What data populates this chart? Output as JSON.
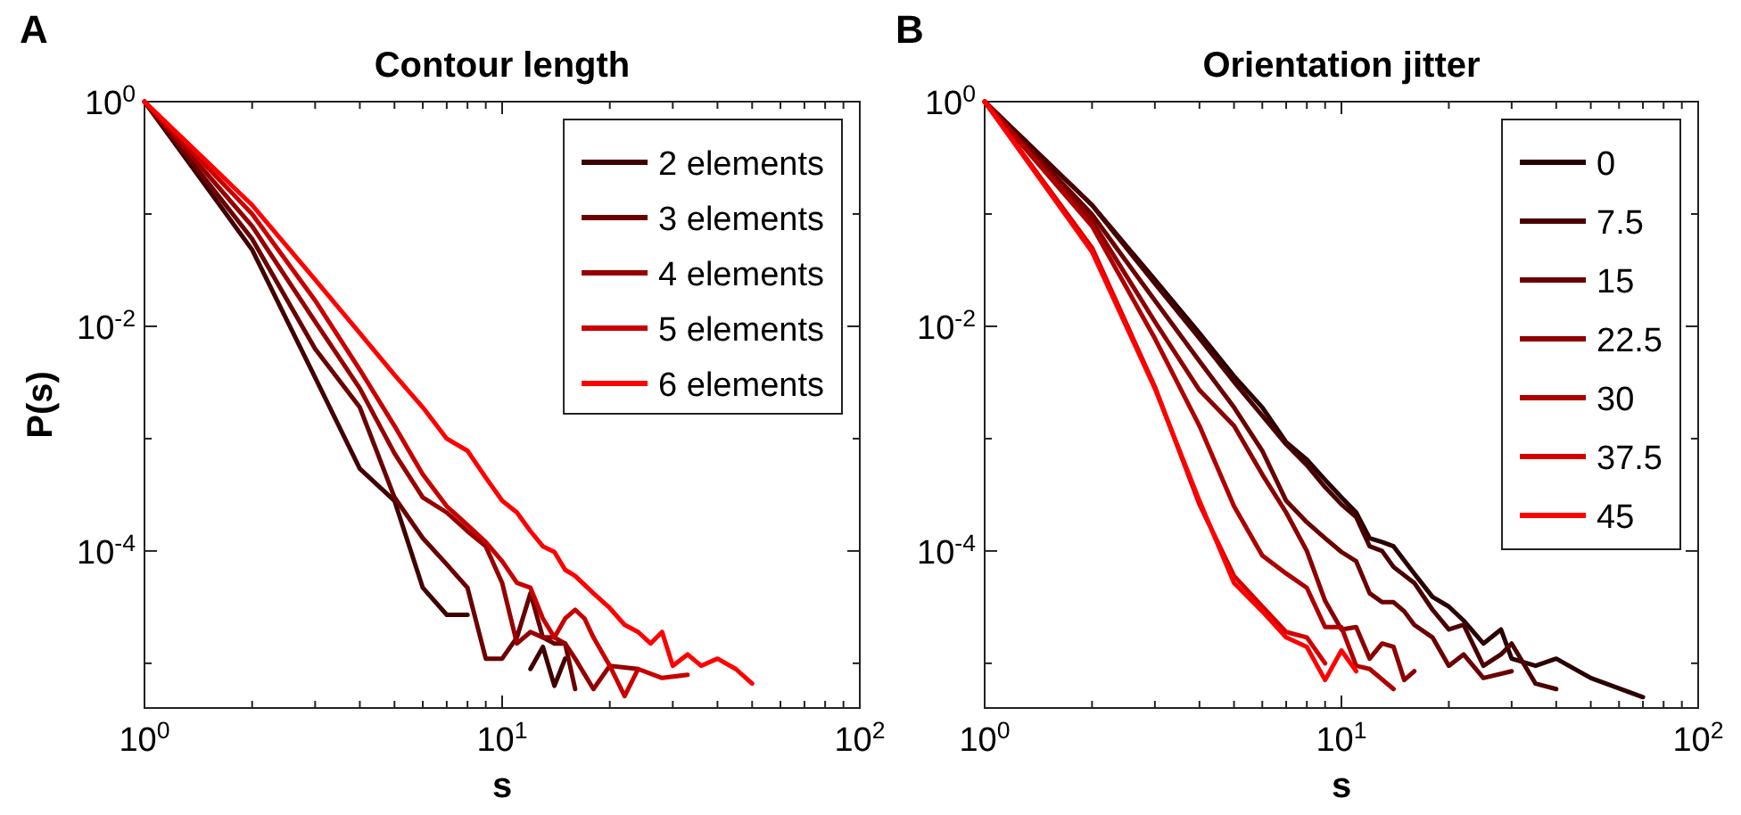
{
  "chart_data": [
    {
      "type": "line",
      "title": "Contour length",
      "xlabel": "s",
      "ylabel": "P(s)",
      "annotations": [
        "A"
      ],
      "log": "xy",
      "legend": "top right",
      "xlim": [
        1,
        100
      ],
      "ylim": [
        4e-06,
        1
      ],
      "xticks": [
        {
          "value": 1,
          "label": "10$^{0}$"
        },
        {
          "value": 2,
          "label": null
        },
        {
          "value": 3,
          "label": null
        },
        {
          "value": 4,
          "label": null
        },
        {
          "value": 5,
          "label": null
        },
        {
          "value": 6,
          "label": null
        },
        {
          "value": 7,
          "label": null
        },
        {
          "value": 8,
          "label": null
        },
        {
          "value": 9,
          "label": null
        },
        {
          "value": 10,
          "label": "10$^{1}$"
        },
        {
          "value": 20,
          "label": null
        },
        {
          "value": 30,
          "label": null
        },
        {
          "value": 40,
          "label": null
        },
        {
          "value": 50,
          "label": null
        },
        {
          "value": 60,
          "label": null
        },
        {
          "value": 70,
          "label": null
        },
        {
          "value": 80,
          "label": null
        },
        {
          "value": 90,
          "label": null
        },
        {
          "value": 100,
          "label": "10$^{2}$"
        }
      ],
      "yticks": [
        {
          "value": 1,
          "label": "10$^{0}$"
        },
        {
          "value": 0.1,
          "label": null
        },
        {
          "value": 0.01,
          "label": "10$^{-2}$"
        },
        {
          "value": 0.001,
          "label": null
        },
        {
          "value": 0.0001,
          "label": "10$^{-4}$"
        },
        {
          "value": 1e-05,
          "label": null
        }
      ],
      "series": [
        {
          "name": "2 elements",
          "color": "#400000",
          "x": [
            1,
            2,
            3,
            4,
            5,
            6,
            7,
            8,
            10,
            12,
            13,
            14,
            15
          ],
          "values": [
            1,
            0.048,
            0.0035,
            0.00054,
            0.00028,
            4.7e-05,
            2.7e-05,
            2.7e-05,
            null,
            8.9e-06,
            1.4e-05,
            6.3e-06,
            1.1e-05
          ]
        },
        {
          "name": "3 elements",
          "color": "#6a0000",
          "x": [
            1,
            2,
            3,
            4,
            5,
            6,
            7,
            8,
            9,
            10,
            11,
            12,
            13,
            14,
            15,
            16
          ],
          "values": [
            1,
            0.06,
            0.0063,
            0.0019,
            0.0003,
            0.00013,
            7.6e-05,
            4.7e-05,
            1.1e-05,
            1.1e-05,
            1.7e-05,
            4.2e-05,
            1.7e-05,
            1.5e-05,
            1.5e-05,
            5.9e-06
          ]
        },
        {
          "name": "4 elements",
          "color": "#960000",
          "x": [
            1,
            2,
            3,
            4,
            5,
            6,
            7,
            8,
            9,
            10,
            11,
            12,
            13,
            14,
            15,
            16,
            18,
            20,
            24
          ],
          "values": [
            1,
            0.078,
            0.011,
            0.0028,
            0.00074,
            0.0003,
            0.00022,
            0.00015,
            0.00011,
            5.2e-05,
            1.5e-05,
            1.9e-05,
            1.7e-05,
            1.7e-05,
            1.5e-05,
            1.1e-05,
            5.9e-06,
            9.5e-06,
            8.9e-06
          ]
        },
        {
          "name": "5 elements",
          "color": "#c80000",
          "x": [
            1,
            2,
            3,
            4,
            5,
            6,
            7,
            8,
            9,
            10,
            11,
            12,
            13,
            14,
            15,
            16,
            17,
            18,
            20,
            22,
            24,
            28,
            33
          ],
          "values": [
            1,
            0.1,
            0.017,
            0.0041,
            0.0013,
            0.00048,
            0.00025,
            0.00017,
            0.00012,
            8.1e-05,
            5.2e-05,
            4.7e-05,
            2.5e-05,
            1.7e-05,
            2.5e-05,
            3e-05,
            2.5e-05,
            1.7e-05,
            9.5e-06,
            5.1e-06,
            8.9e-06,
            7.4e-06,
            7.9e-06
          ]
        },
        {
          "name": "6 elements",
          "color": "#ff0000",
          "x": [
            1,
            2,
            3,
            4,
            5,
            6,
            7,
            8,
            9,
            10,
            11,
            12,
            13,
            14,
            15,
            16,
            18,
            20,
            22,
            24,
            26,
            28,
            30,
            33,
            36,
            40,
            45,
            50
          ],
          "values": [
            1,
            0.12,
            0.026,
            0.0087,
            0.0037,
            0.0019,
            0.001,
            0.00078,
            0.00045,
            0.00028,
            0.00022,
            0.00015,
            0.00011,
            9.8e-05,
            6.8e-05,
            6e-05,
            4.2e-05,
            3.1e-05,
            2.2e-05,
            1.9e-05,
            1.5e-05,
            1.9e-05,
            9.5e-06,
            1.2e-05,
            9.5e-06,
            1.1e-05,
            8.9e-06,
            6.6e-06
          ]
        }
      ]
    },
    {
      "type": "line",
      "title": "Orientation jitter",
      "xlabel": "s",
      "annotations": [
        "B"
      ],
      "log": "xy",
      "legend": "top right",
      "xlim": [
        1,
        100
      ],
      "ylim": [
        4e-06,
        1
      ],
      "xticks": [
        {
          "value": 1,
          "label": "10$^{0}$"
        },
        {
          "value": 2,
          "label": null
        },
        {
          "value": 3,
          "label": null
        },
        {
          "value": 4,
          "label": null
        },
        {
          "value": 5,
          "label": null
        },
        {
          "value": 6,
          "label": null
        },
        {
          "value": 7,
          "label": null
        },
        {
          "value": 8,
          "label": null
        },
        {
          "value": 9,
          "label": null
        },
        {
          "value": 10,
          "label": "10$^{1}$"
        },
        {
          "value": 20,
          "label": null
        },
        {
          "value": 30,
          "label": null
        },
        {
          "value": 40,
          "label": null
        },
        {
          "value": 50,
          "label": null
        },
        {
          "value": 60,
          "label": null
        },
        {
          "value": 70,
          "label": null
        },
        {
          "value": 80,
          "label": null
        },
        {
          "value": 90,
          "label": null
        },
        {
          "value": 100,
          "label": "10$^{2}$"
        }
      ],
      "yticks": [
        {
          "value": 1,
          "label": "10$^{0}$"
        },
        {
          "value": 0.1,
          "label": null
        },
        {
          "value": 0.01,
          "label": "10$^{-2}$"
        },
        {
          "value": 0.001,
          "label": null
        },
        {
          "value": 0.0001,
          "label": "10$^{-4}$"
        },
        {
          "value": 1e-05,
          "label": null
        }
      ],
      "series": [
        {
          "name": "0",
          "color": "#2a0000",
          "x": [
            1,
            2,
            3,
            4,
            5,
            6,
            7,
            8,
            9,
            10,
            11,
            12,
            13,
            14,
            16,
            18,
            20,
            22,
            25,
            28,
            30,
            35,
            40,
            50,
            70
          ],
          "values": [
            1,
            0.12,
            0.026,
            0.0087,
            0.0036,
            0.0019,
            0.00093,
            0.00065,
            0.00043,
            0.0003,
            0.00022,
            0.00013,
            0.00012,
            0.00011,
            6.3e-05,
            3.9e-05,
            3.2e-05,
            2.4e-05,
            1.5e-05,
            2e-05,
            1.1e-05,
            9.5e-06,
            1.1e-05,
            7.4e-06,
            5e-06
          ]
        },
        {
          "name": "7.5",
          "color": "#4a0000",
          "x": [
            1,
            2,
            3,
            4,
            5,
            6,
            7,
            8,
            9,
            10,
            11,
            12,
            13,
            14,
            16,
            18,
            20,
            22,
            25,
            28,
            30,
            35,
            40
          ],
          "values": [
            1,
            0.12,
            0.024,
            0.0078,
            0.0032,
            0.0016,
            0.00089,
            0.00058,
            0.00037,
            0.00026,
            0.0002,
            0.00011,
            0.0001,
            7.2e-05,
            5.2e-05,
            3e-05,
            2e-05,
            2.2e-05,
            9.5e-06,
            1.2e-05,
            1.5e-05,
            6.6e-06,
            5.9e-06
          ]
        },
        {
          "name": "15",
          "color": "#6a0000",
          "x": [
            1,
            2,
            3,
            4,
            5,
            6,
            7,
            8,
            9,
            10,
            11,
            12,
            13,
            14,
            15,
            16,
            18,
            20,
            22,
            25,
            30
          ],
          "values": [
            1,
            0.099,
            0.017,
            0.0049,
            0.0019,
            0.00078,
            0.00028,
            0.00018,
            0.00013,
            9.8e-05,
            8.1e-05,
            4.2e-05,
            3.5e-05,
            3.5e-05,
            2.9e-05,
            2.2e-05,
            1.7e-05,
            9.5e-06,
            1.2e-05,
            7.4e-06,
            8.5e-06
          ]
        },
        {
          "name": "22.5",
          "color": "#8c0000",
          "x": [
            1,
            2,
            3,
            4,
            5,
            6,
            7,
            8,
            9,
            10,
            11,
            12,
            13,
            14,
            15,
            16
          ],
          "values": [
            1,
            0.087,
            0.011,
            0.0027,
            0.0013,
            0.00048,
            0.00022,
            0.0001,
            3.6e-05,
            2e-05,
            2.1e-05,
            1.1e-05,
            1.5e-05,
            1.4e-05,
            7.1e-06,
            8.5e-06
          ]
        },
        {
          "name": "30",
          "color": "#ae0000",
          "x": [
            1,
            2,
            3,
            4,
            5,
            6,
            7,
            8,
            9,
            10,
            11,
            12,
            14
          ],
          "values": [
            1,
            0.078,
            0.0078,
            0.0013,
            0.00025,
            9.1e-05,
            6.3e-05,
            4.7e-05,
            2.1e-05,
            2.1e-05,
            9.5e-06,
            8.9e-06,
            5.9e-06
          ]
        },
        {
          "name": "37.5",
          "color": "#d40000",
          "x": [
            1,
            2,
            3,
            4,
            5,
            6,
            7,
            8,
            9
          ],
          "values": [
            1,
            0.05,
            0.0029,
            0.00026,
            6e-05,
            3.2e-05,
            1.9e-05,
            1.7e-05,
            1e-05
          ]
        },
        {
          "name": "45",
          "color": "#ff0000",
          "x": [
            1,
            2,
            3,
            4,
            5,
            6,
            7,
            8,
            9,
            10,
            11
          ],
          "values": [
            1,
            0.046,
            0.0028,
            0.00028,
            5.2e-05,
            2.9e-05,
            1.7e-05,
            1.4e-05,
            7.1e-06,
            1.3e-05,
            8.5e-06
          ]
        }
      ]
    }
  ]
}
